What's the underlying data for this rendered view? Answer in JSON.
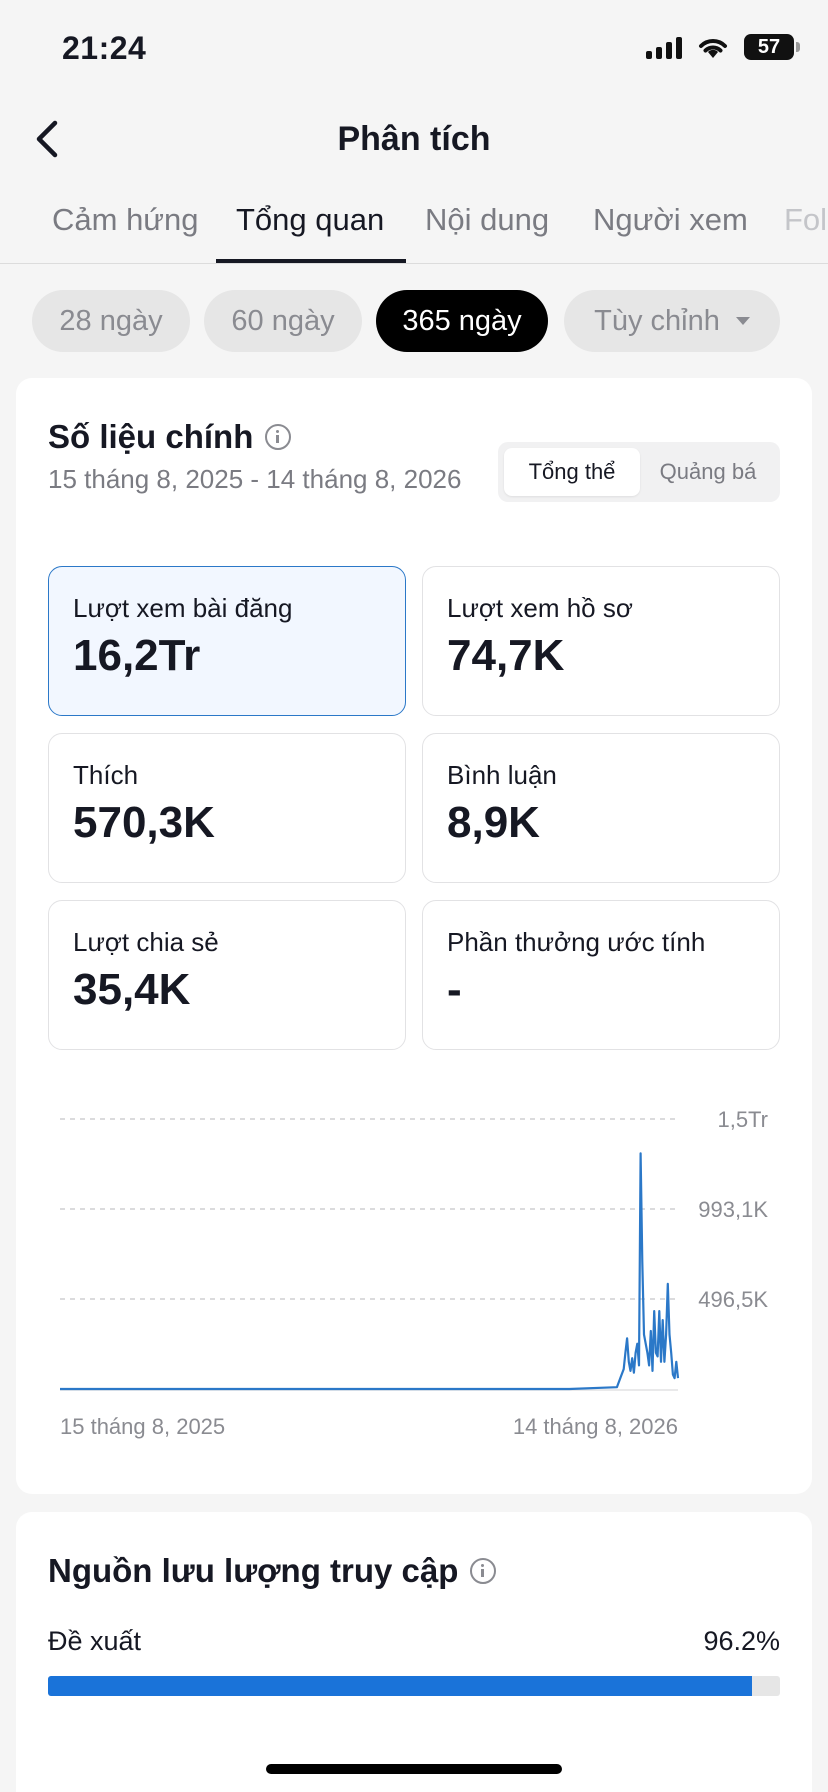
{
  "status": {
    "time": "21:24",
    "battery": "57"
  },
  "header": {
    "title": "Phân tích"
  },
  "tabs": [
    {
      "label": "Cảm hứng"
    },
    {
      "label": "Tổng quan"
    },
    {
      "label": "Nội dung"
    },
    {
      "label": "Người xem"
    },
    {
      "label": "Fol"
    }
  ],
  "active_tab": "Tổng quan",
  "ranges": [
    {
      "label": "28 ngày"
    },
    {
      "label": "60 ngày"
    },
    {
      "label": "365 ngày"
    },
    {
      "label": "Tùy chỉnh"
    }
  ],
  "active_range": "365 ngày",
  "key_metrics": {
    "title": "Số liệu chính",
    "date_range": "15 tháng 8, 2025 - 14 tháng 8, 2026",
    "segment": {
      "options": [
        "Tổng thể",
        "Quảng bá"
      ],
      "active": "Tổng thể"
    },
    "cards": [
      {
        "label": "Lượt xem bài đăng",
        "value": "16,2Tr",
        "selected": true
      },
      {
        "label": "Lượt xem hồ sơ",
        "value": "74,7K",
        "selected": false
      },
      {
        "label": "Thích",
        "value": "570,3K",
        "selected": false
      },
      {
        "label": "Bình luận",
        "value": "8,9K",
        "selected": false
      },
      {
        "label": "Lượt chia sẻ",
        "value": "35,4K",
        "selected": false
      },
      {
        "label": "Phần thưởng ước tính",
        "value": "-",
        "selected": false
      }
    ]
  },
  "chart_data": {
    "type": "line",
    "color": "#2b78c8",
    "x_start_label": "15 tháng 8, 2025",
    "x_end_label": "14 tháng 8, 2026",
    "y_ticks": [
      {
        "value": 1490000,
        "label": "1,5Tr"
      },
      {
        "value": 993100,
        "label": "993,1K"
      },
      {
        "value": 496500,
        "label": "496,5K"
      }
    ],
    "ylim": [
      0,
      1490000
    ],
    "grid": true,
    "series": [
      {
        "x": [
          0,
          300,
          328,
          330,
          332,
          333,
          334,
          335,
          336,
          337,
          338,
          339,
          340,
          341,
          342,
          343,
          344,
          345,
          346,
          347,
          348,
          349,
          350,
          351,
          352,
          353,
          354,
          355,
          356,
          357,
          358,
          359,
          360,
          361,
          362,
          363,
          364
        ],
        "values": [
          0,
          0,
          10000,
          60000,
          110000,
          200000,
          280000,
          150000,
          100000,
          170000,
          90000,
          200000,
          250000,
          130000,
          1300000,
          700000,
          300000,
          250000,
          200000,
          130000,
          320000,
          100000,
          430000,
          200000,
          180000,
          430000,
          150000,
          380000,
          150000,
          300000,
          580000,
          300000,
          200000,
          80000,
          60000,
          150000,
          60000
        ]
      }
    ]
  },
  "traffic": {
    "title": "Nguồn lưu lượng truy cập",
    "rows": [
      {
        "label": "Đề xuất",
        "value": "96.2%",
        "percent": 96.2
      }
    ]
  },
  "colors": {
    "accent": "#1a73d9",
    "line": "#2b78c8",
    "selected_bg": "#f2f7ff"
  }
}
